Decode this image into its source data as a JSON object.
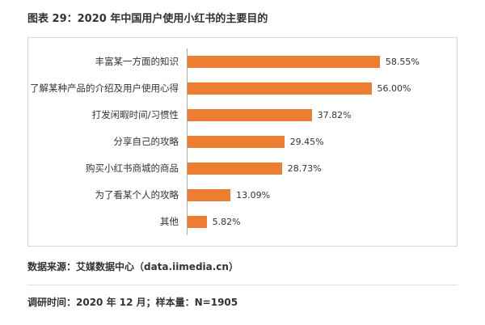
{
  "page": {
    "title": "图表 29：2020 年中国用户使用小红书的主要目的"
  },
  "chart_data": {
    "type": "bar",
    "orientation": "horizontal",
    "title": "图表 29：2020 年中国用户使用小红书的主要目的",
    "categories": [
      "丰富某一方面的知识",
      "了解某种产品的介绍及用户使用心得",
      "打发闲暇时间/习惯性",
      "分享自己的攻略",
      "购买小红书商城的商品",
      "为了看某个人的攻略",
      "其他"
    ],
    "values": [
      58.55,
      56.0,
      37.82,
      29.45,
      28.73,
      13.09,
      5.82
    ],
    "value_labels": [
      "58.55%",
      "56.00%",
      "37.82%",
      "29.45%",
      "28.73%",
      "13.09%",
      "5.82%"
    ],
    "xlabel": "",
    "ylabel": "",
    "xlim": [
      0,
      80
    ],
    "grid": false,
    "legend": "none",
    "bar_color": "#ED7D31"
  },
  "footer": {
    "source": "数据来源：艾媒数据中心（data.iimedia.cn）",
    "survey": "调研时间：2020 年 12 月；样本量：N=1905"
  }
}
